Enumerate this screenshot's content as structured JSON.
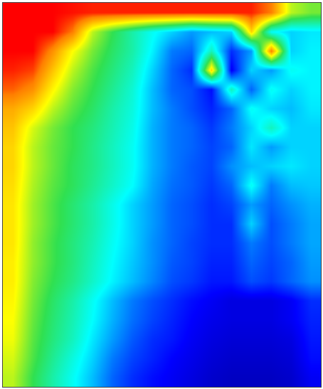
{
  "chart_data": {
    "type": "heatmap",
    "color": "jet",
    "tick_labels": false,
    "xlim": [
      -0.5,
      15.5
    ],
    "ylim": [
      19.5,
      -0.5
    ],
    "zlim": [
      0,
      1
    ],
    "cells": [
      [
        0.88,
        0.88,
        0.88,
        0.87,
        0.86,
        0.86,
        0.86,
        0.86,
        0.86,
        0.86,
        0.86,
        0.86,
        0.86,
        0.8,
        0.6,
        0.55
      ],
      [
        0.88,
        0.88,
        0.88,
        0.8,
        0.6,
        0.5,
        0.42,
        0.35,
        0.3,
        0.25,
        0.28,
        0.3,
        0.7,
        0.35,
        0.3,
        0.32
      ],
      [
        0.88,
        0.88,
        0.78,
        0.65,
        0.55,
        0.48,
        0.42,
        0.33,
        0.22,
        0.2,
        0.4,
        0.15,
        0.25,
        0.8,
        0.3,
        0.33
      ],
      [
        0.86,
        0.84,
        0.72,
        0.6,
        0.52,
        0.46,
        0.4,
        0.3,
        0.2,
        0.15,
        0.7,
        0.1,
        0.3,
        0.25,
        0.35,
        0.33
      ],
      [
        0.82,
        0.78,
        0.66,
        0.56,
        0.5,
        0.44,
        0.38,
        0.28,
        0.2,
        0.18,
        0.12,
        0.4,
        0.2,
        0.35,
        0.3,
        0.33
      ],
      [
        0.75,
        0.7,
        0.6,
        0.53,
        0.48,
        0.42,
        0.37,
        0.28,
        0.22,
        0.18,
        0.14,
        0.2,
        0.35,
        0.3,
        0.28,
        0.32
      ],
      [
        0.72,
        0.62,
        0.55,
        0.5,
        0.46,
        0.41,
        0.36,
        0.27,
        0.22,
        0.2,
        0.16,
        0.22,
        0.3,
        0.4,
        0.3,
        0.3
      ],
      [
        0.7,
        0.6,
        0.54,
        0.5,
        0.45,
        0.4,
        0.35,
        0.27,
        0.22,
        0.2,
        0.17,
        0.2,
        0.32,
        0.25,
        0.3,
        0.3
      ],
      [
        0.7,
        0.6,
        0.54,
        0.49,
        0.45,
        0.4,
        0.35,
        0.27,
        0.22,
        0.19,
        0.17,
        0.24,
        0.28,
        0.3,
        0.32,
        0.3
      ],
      [
        0.69,
        0.59,
        0.53,
        0.49,
        0.44,
        0.39,
        0.34,
        0.26,
        0.21,
        0.19,
        0.16,
        0.2,
        0.35,
        0.22,
        0.28,
        0.29
      ],
      [
        0.68,
        0.58,
        0.52,
        0.47,
        0.42,
        0.36,
        0.3,
        0.25,
        0.2,
        0.18,
        0.15,
        0.17,
        0.25,
        0.2,
        0.24,
        0.27
      ],
      [
        0.68,
        0.58,
        0.52,
        0.47,
        0.42,
        0.36,
        0.3,
        0.25,
        0.2,
        0.18,
        0.15,
        0.15,
        0.3,
        0.18,
        0.22,
        0.26
      ],
      [
        0.68,
        0.57,
        0.51,
        0.46,
        0.41,
        0.35,
        0.3,
        0.24,
        0.2,
        0.17,
        0.15,
        0.15,
        0.22,
        0.18,
        0.22,
        0.26
      ],
      [
        0.67,
        0.57,
        0.51,
        0.46,
        0.4,
        0.34,
        0.29,
        0.24,
        0.19,
        0.17,
        0.14,
        0.14,
        0.2,
        0.17,
        0.2,
        0.25
      ],
      [
        0.67,
        0.56,
        0.5,
        0.45,
        0.39,
        0.33,
        0.28,
        0.23,
        0.18,
        0.16,
        0.13,
        0.13,
        0.18,
        0.16,
        0.2,
        0.24
      ],
      [
        0.66,
        0.55,
        0.48,
        0.42,
        0.35,
        0.28,
        0.22,
        0.18,
        0.15,
        0.12,
        0.1,
        0.08,
        0.08,
        0.08,
        0.1,
        0.15
      ],
      [
        0.65,
        0.54,
        0.47,
        0.41,
        0.34,
        0.27,
        0.21,
        0.17,
        0.14,
        0.11,
        0.09,
        0.08,
        0.08,
        0.08,
        0.1,
        0.14
      ],
      [
        0.64,
        0.53,
        0.46,
        0.4,
        0.32,
        0.25,
        0.19,
        0.15,
        0.13,
        0.1,
        0.08,
        0.07,
        0.07,
        0.07,
        0.08,
        0.13
      ],
      [
        0.62,
        0.52,
        0.44,
        0.37,
        0.3,
        0.22,
        0.17,
        0.14,
        0.11,
        0.09,
        0.07,
        0.06,
        0.06,
        0.06,
        0.07,
        0.12
      ],
      [
        0.6,
        0.5,
        0.42,
        0.35,
        0.28,
        0.2,
        0.15,
        0.12,
        0.1,
        0.08,
        0.06,
        0.05,
        0.05,
        0.05,
        0.06,
        0.1
      ]
    ]
  }
}
